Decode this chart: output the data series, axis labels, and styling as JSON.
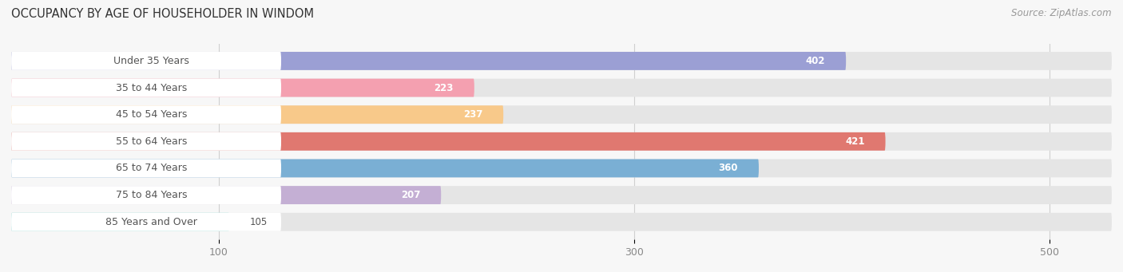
{
  "title": "OCCUPANCY BY AGE OF HOUSEHOLDER IN WINDOM",
  "source": "Source: ZipAtlas.com",
  "categories": [
    "Under 35 Years",
    "35 to 44 Years",
    "45 to 54 Years",
    "55 to 64 Years",
    "65 to 74 Years",
    "75 to 84 Years",
    "85 Years and Over"
  ],
  "values": [
    402,
    223,
    237,
    421,
    360,
    207,
    105
  ],
  "bar_colors": [
    "#9b9fd4",
    "#f4a0b0",
    "#f8c98a",
    "#e07870",
    "#7aafd4",
    "#c4afd4",
    "#7dd4d0"
  ],
  "data_min": 0,
  "data_max": 530,
  "xticks": [
    100,
    300,
    500
  ],
  "title_fontsize": 10.5,
  "source_fontsize": 8.5,
  "label_fontsize": 9,
  "value_fontsize": 8.5,
  "bar_height": 0.68,
  "background_color": "#f7f7f7",
  "bar_bg_color": "#e5e5e5",
  "label_bg_color": "#ffffff",
  "grid_color": "#d0d0d0",
  "text_color": "#555555",
  "value_inside_color": "#ffffff",
  "value_outside_color": "#555555"
}
